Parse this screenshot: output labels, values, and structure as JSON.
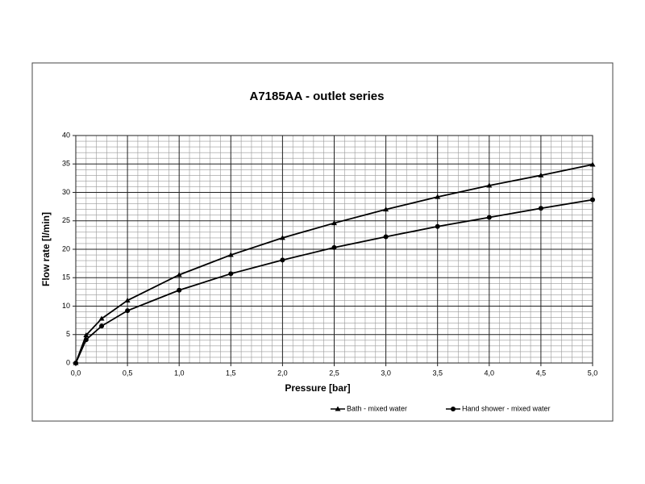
{
  "chart_data": {
    "type": "line",
    "title": "A7185AA - outlet series",
    "x_label": "Pressure [bar]",
    "y_label": "Flow rate [l/min]",
    "x": [
      0,
      0.1,
      0.25,
      0.5,
      1.0,
      1.5,
      2.0,
      2.5,
      3.0,
      3.5,
      4.0,
      4.5,
      5.0
    ],
    "series": [
      {
        "name": "Bath - mixed water",
        "color": "#000000",
        "marker": "triangle",
        "values": [
          0,
          4.9,
          7.8,
          11.0,
          15.5,
          19.0,
          22.0,
          24.6,
          27.0,
          29.2,
          31.2,
          33.0,
          34.9
        ]
      },
      {
        "name": "Hand shower - mixed water",
        "color": "#000000",
        "marker": "circle",
        "values": [
          0,
          4.1,
          6.5,
          9.2,
          12.8,
          15.7,
          18.1,
          20.3,
          22.2,
          24.0,
          25.6,
          27.2,
          28.7
        ]
      }
    ],
    "xlim": [
      0,
      5
    ],
    "ylim": [
      0,
      40
    ],
    "xticks": [
      {
        "value": 0,
        "label": "0,0"
      },
      {
        "value": 0.5,
        "label": "0,5"
      },
      {
        "value": 1,
        "label": "1,0"
      },
      {
        "value": 1.5,
        "label": "1,5"
      },
      {
        "value": 2,
        "label": "2,0"
      },
      {
        "value": 2.5,
        "label": "2,5"
      },
      {
        "value": 3,
        "label": "3,0"
      },
      {
        "value": 3.5,
        "label": "3,5"
      },
      {
        "value": 4,
        "label": "4,0"
      },
      {
        "value": 4.5,
        "label": "4,5"
      },
      {
        "value": 5,
        "label": "5,0"
      }
    ],
    "yticks": [
      0,
      5,
      10,
      15,
      20,
      25,
      30,
      35,
      40
    ],
    "grid": true,
    "minor_grid": true,
    "legend": "bottom"
  }
}
